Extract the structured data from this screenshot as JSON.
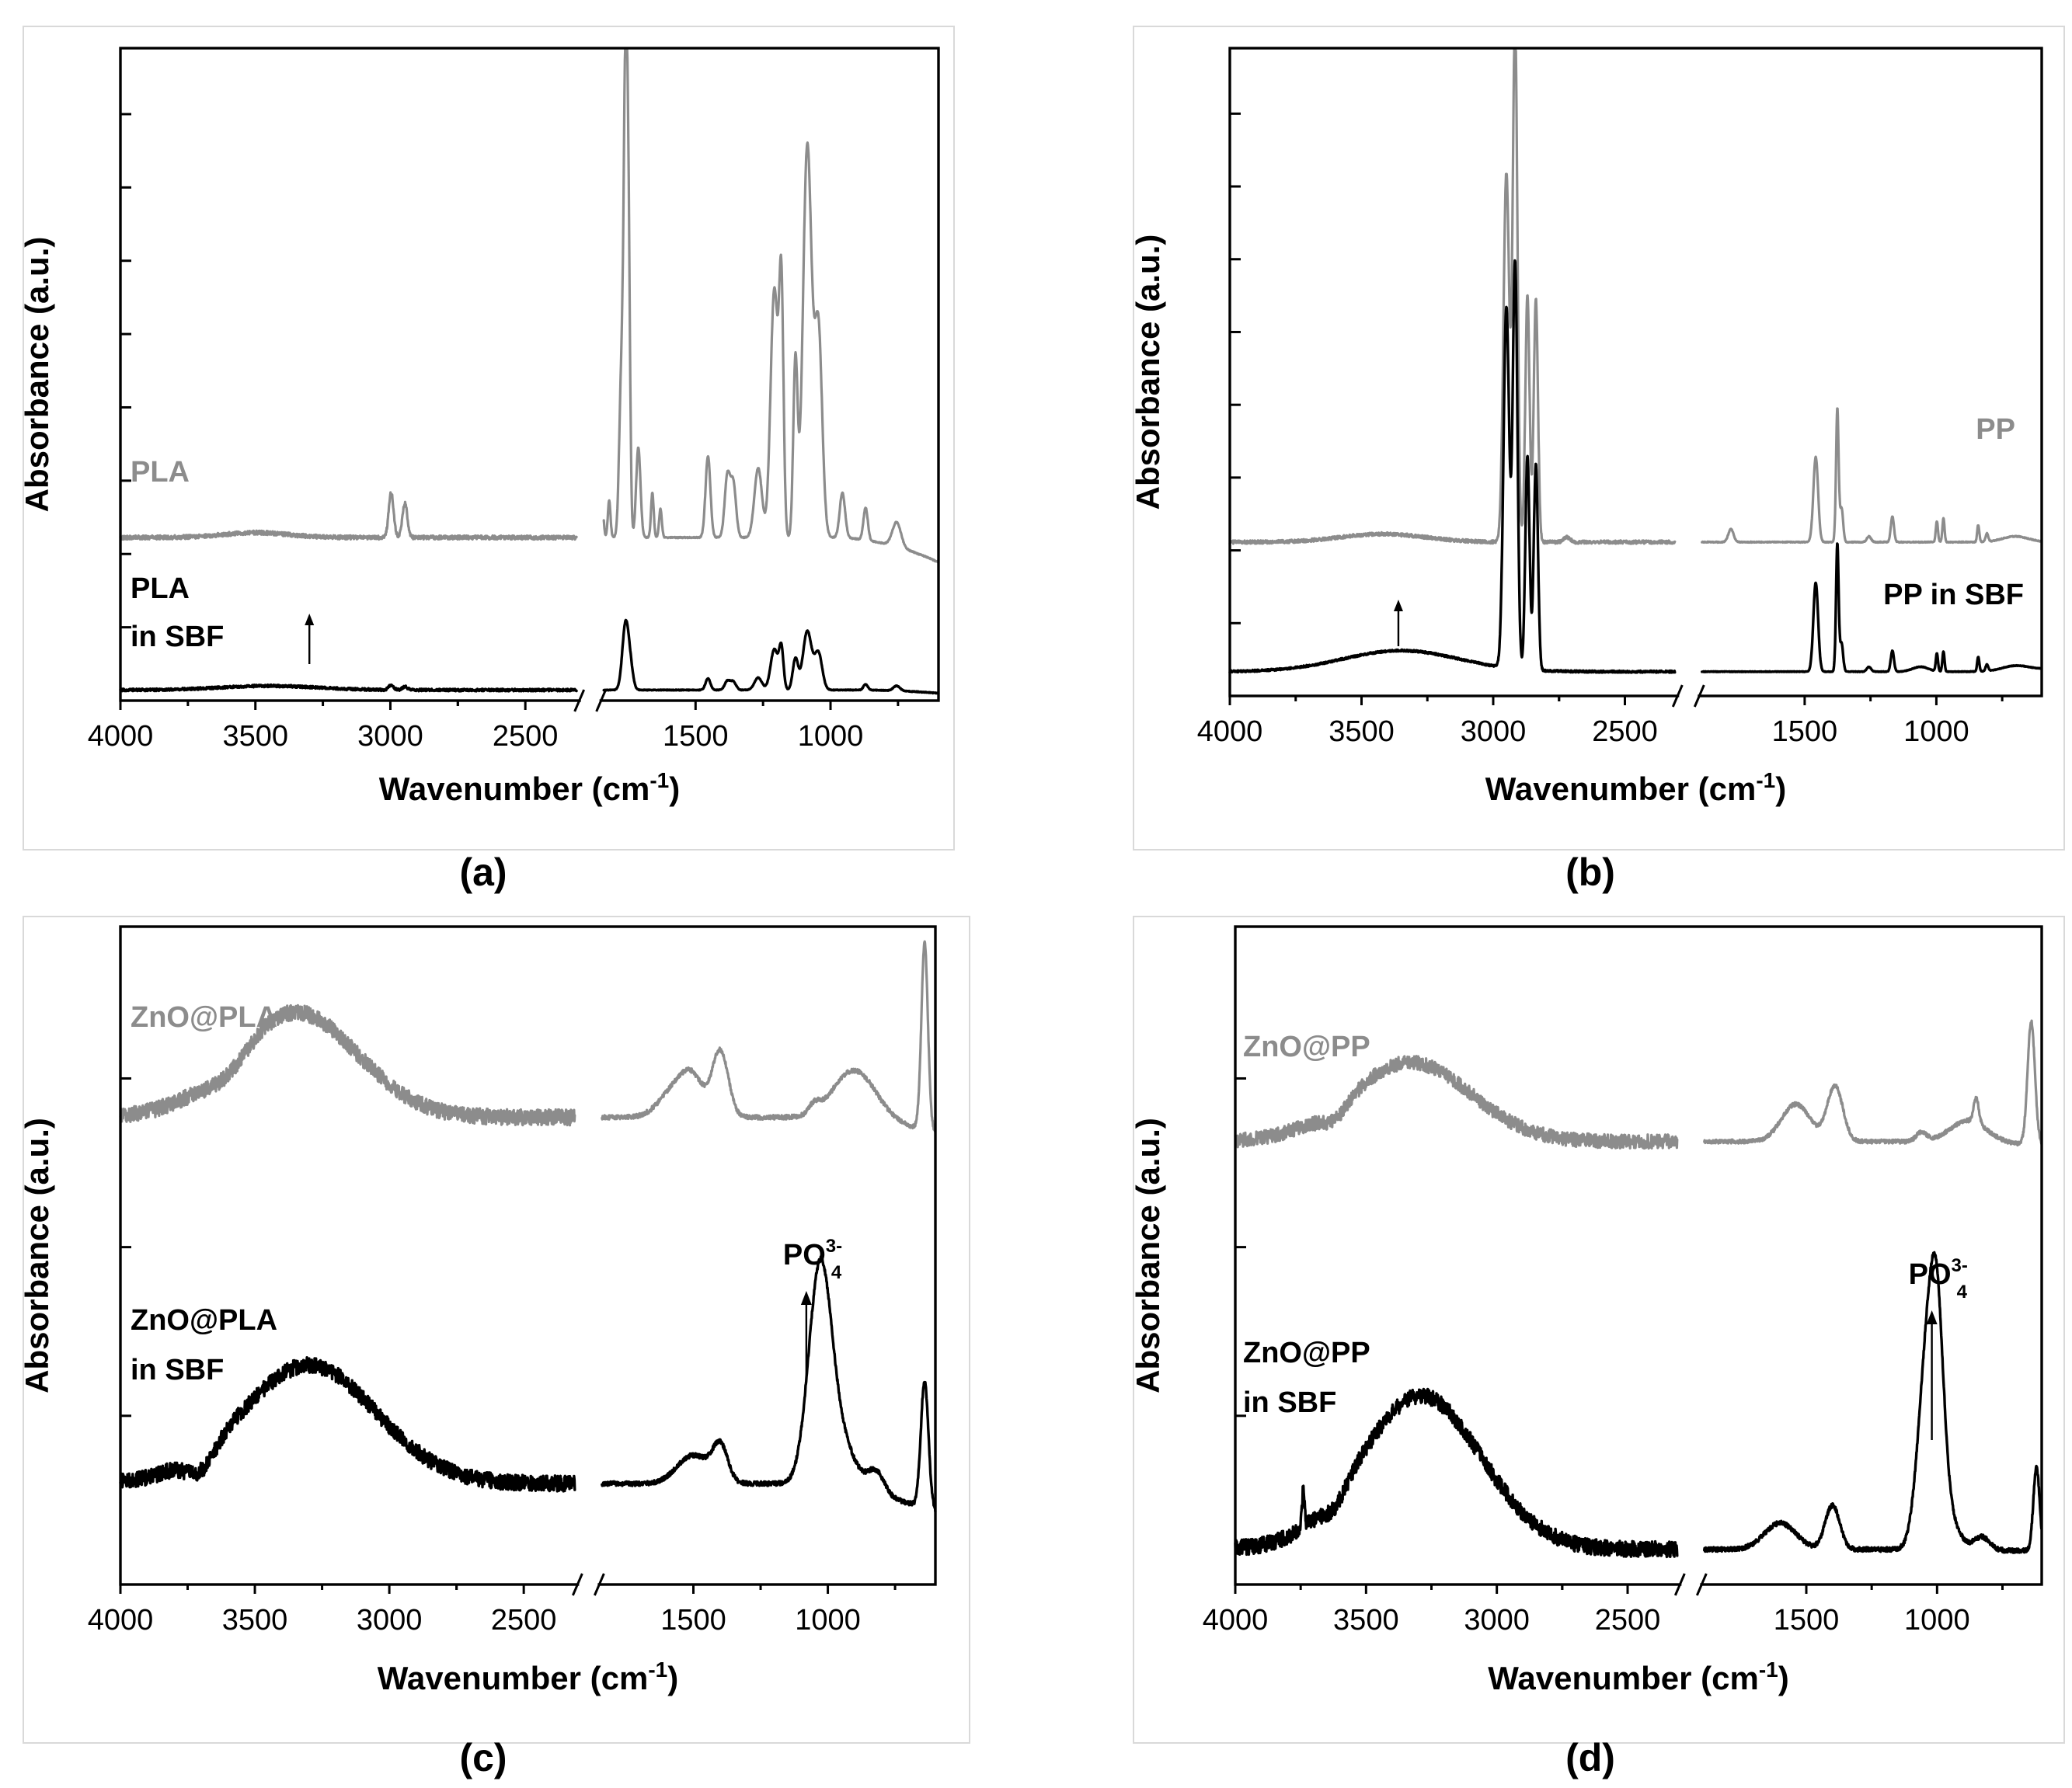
{
  "figure": {
    "x_label": "Wavenumber (cm",
    "x_label_superscript": "-1",
    "x_label_close": ")",
    "y_label": "Absorbance (a.u.)",
    "colors": {
      "sample": "#8c8c8c",
      "in_sbf": "#000000"
    }
  },
  "panels": [
    {
      "caption": "(a)",
      "upper_label": [
        "PLA"
      ],
      "lower_label": [
        "PLA",
        "in SBF"
      ],
      "x_tick_labels": [
        "4000",
        "3500",
        "3000",
        "2500",
        "1500",
        "1000"
      ],
      "y_tick_count": 8,
      "annotation": {
        "text": "",
        "superscript": "",
        "subscript": "",
        "arrow_at": 3300
      }
    },
    {
      "caption": "(b)",
      "upper_label": [
        "PP"
      ],
      "lower_label": [
        "PP in SBF"
      ],
      "x_tick_labels": [
        "4000",
        "3500",
        "3000",
        "2500",
        "1500",
        "1000"
      ],
      "y_tick_count": 8,
      "annotation": {
        "text": "",
        "superscript": "",
        "subscript": "",
        "arrow_at": 3360
      }
    },
    {
      "caption": "(c)",
      "upper_label": [
        "ZnO@PLA"
      ],
      "lower_label": [
        "ZnO@PLA",
        "in SBF"
      ],
      "x_tick_labels": [
        "4000",
        "3500",
        "3000",
        "2500",
        "1500",
        "1000"
      ],
      "y_tick_count": 3,
      "annotation": {
        "text": "PO",
        "superscript": "3-",
        "subscript": "4",
        "arrow_at": 1080
      }
    },
    {
      "caption": "(d)",
      "upper_label": [
        "ZnO@PP"
      ],
      "lower_label": [
        "ZnO@PP",
        "in SBF"
      ],
      "x_tick_labels": [
        "4000",
        "3500",
        "3000",
        "2500",
        "1500",
        "1000"
      ],
      "y_tick_count": 3,
      "annotation": {
        "text": "PO",
        "superscript": "3-",
        "subscript": "4",
        "arrow_at": 1020
      }
    }
  ],
  "chart_data": [
    {
      "type": "line",
      "panel": "(a)",
      "x_unit": "cm-1",
      "xlim": [
        4000,
        600
      ],
      "x_break": [
        2300,
        1850
      ],
      "ylim": [
        0,
        8
      ],
      "series": [
        {
          "name": "PLA",
          "color": "#8c8c8c",
          "baseline": 2.0,
          "slope": 0.0,
          "noise": 0.03,
          "noise_end": 2300,
          "tail_to": 600,
          "tail_value": 1.62,
          "tail_from": 1000,
          "peaks": [
            [
              3500,
              0.06,
              120
            ],
            [
              2997,
              0.55,
              9
            ],
            [
              2946,
              0.42,
              9
            ],
            [
              1845,
              0.35,
              5
            ],
            [
              1820,
              0.45,
              5
            ],
            [
              1775,
              1.9,
              8
            ],
            [
              1759,
              5.65,
              7
            ],
            [
              1748,
              2.9,
              6
            ],
            [
              1712,
              1.1,
              8
            ],
            [
              1660,
              0.55,
              5
            ],
            [
              1630,
              0.35,
              5
            ],
            [
              1454,
              1.0,
              9
            ],
            [
              1382,
              0.75,
              10
            ],
            [
              1360,
              0.65,
              10
            ],
            [
              1268,
              0.85,
              14
            ],
            [
              1208,
              3.05,
              14
            ],
            [
              1182,
              2.85,
              8
            ],
            [
              1130,
              2.15,
              8
            ],
            [
              1086,
              4.8,
              16
            ],
            [
              1045,
              2.55,
              14
            ],
            [
              956,
              0.55,
              10
            ],
            [
              870,
              0.4,
              8
            ],
            [
              755,
              0.3,
              16
            ]
          ]
        },
        {
          "name": "PLA in SBF",
          "color": "#000000",
          "baseline": 0.13,
          "slope": 0.0,
          "noise": 0.018,
          "noise_end": 2300,
          "tail_to": 600,
          "tail_value": 0.08,
          "tail_from": 900,
          "peaks": [
            [
              3450,
              0.05,
              180
            ],
            [
              2997,
              0.06,
              9
            ],
            [
              2946,
              0.04,
              9
            ],
            [
              1759,
              0.82,
              12
            ],
            [
              1740,
              0.2,
              10
            ],
            [
              1454,
              0.14,
              9
            ],
            [
              1382,
              0.11,
              10
            ],
            [
              1360,
              0.1,
              10
            ],
            [
              1268,
              0.15,
              14
            ],
            [
              1208,
              0.5,
              14
            ],
            [
              1182,
              0.48,
              8
            ],
            [
              1130,
              0.38,
              10
            ],
            [
              1086,
              0.72,
              16
            ],
            [
              1045,
              0.45,
              14
            ],
            [
              870,
              0.07,
              8
            ],
            [
              755,
              0.06,
              12
            ]
          ]
        }
      ]
    },
    {
      "type": "line",
      "panel": "(b)",
      "x_unit": "cm-1",
      "xlim": [
        4000,
        600
      ],
      "x_break": [
        2300,
        1900
      ],
      "ylim": [
        0,
        8
      ],
      "series": [
        {
          "name": "PP",
          "color": "#8c8c8c",
          "baseline": 1.9,
          "slope": 0.0,
          "noise": 0.025,
          "noise_end": 2300,
          "tail_to": 600,
          "tail_value": 1.9,
          "tail_from": 1000,
          "peaks": [
            [
              3420,
              0.1,
              160
            ],
            [
              2950,
              4.55,
              11
            ],
            [
              2917,
              6.4,
              9
            ],
            [
              2870,
              3.05,
              8
            ],
            [
              2838,
              3.0,
              8
            ],
            [
              2720,
              0.06,
              12
            ],
            [
              1780,
              0.16,
              10
            ],
            [
              1458,
              1.05,
              9
            ],
            [
              1376,
              1.65,
              5
            ],
            [
              1360,
              0.42,
              6
            ],
            [
              1256,
              0.07,
              8
            ],
            [
              1167,
              0.32,
              6
            ],
            [
              998,
              0.26,
              4
            ],
            [
              973,
              0.3,
              4
            ],
            [
              841,
              0.21,
              4
            ],
            [
              808,
              0.1,
              5
            ],
            [
              700,
              0.07,
              50
            ]
          ]
        },
        {
          "name": "PP in SBF",
          "color": "#000000",
          "baseline": 0.3,
          "slope": 0.0,
          "noise": 0.015,
          "noise_end": 2300,
          "tail_to": 600,
          "tail_value": 0.34,
          "tail_from": 900,
          "peaks": [
            [
              3350,
              0.26,
              220
            ],
            [
              2950,
              4.45,
              11
            ],
            [
              2917,
              5.0,
              9
            ],
            [
              2870,
              2.65,
              8
            ],
            [
              2838,
              2.55,
              8
            ],
            [
              1458,
              1.1,
              9
            ],
            [
              1376,
              1.58,
              5
            ],
            [
              1360,
              0.35,
              6
            ],
            [
              1256,
              0.06,
              8
            ],
            [
              1167,
              0.26,
              6
            ],
            [
              1060,
              0.06,
              30
            ],
            [
              998,
              0.22,
              4
            ],
            [
              973,
              0.25,
              4
            ],
            [
              841,
              0.18,
              4
            ],
            [
              808,
              0.08,
              5
            ],
            [
              700,
              0.06,
              50
            ]
          ]
        }
      ]
    },
    {
      "type": "line",
      "panel": "(c)",
      "x_unit": "cm-1",
      "xlim": [
        4000,
        600
      ],
      "x_break": [
        2300,
        1850
      ],
      "ylim": [
        0,
        3
      ],
      "series": [
        {
          "name": "ZnO@PLA",
          "color": "#8c8c8c",
          "baseline": 2.13,
          "slope": 0.0,
          "noise": 0.045,
          "noise_end": 2300,
          "tail_to": 600,
          "tail_value": 2.05,
          "tail_from": 1200,
          "peaks": [
            [
              3350,
              0.48,
              230
            ],
            [
              3600,
              -0.07,
              80
            ],
            [
              1560,
              0.14,
              60
            ],
            [
              1400,
              0.3,
              30
            ],
            [
              1500,
              0.12,
              40
            ],
            [
              900,
              0.23,
              80
            ],
            [
              1050,
              0.04,
              20
            ],
            [
              640,
              0.85,
              12
            ]
          ]
        },
        {
          "name": "ZnO@PLA in SBF",
          "color": "#000000",
          "baseline": 0.46,
          "slope": 0.0,
          "noise": 0.045,
          "noise_end": 2300,
          "tail_to": 600,
          "tail_value": 0.3,
          "tail_from": 1200,
          "peaks": [
            [
              3300,
              0.54,
              250
            ],
            [
              3700,
              -0.09,
              50
            ],
            [
              1500,
              0.13,
              60
            ],
            [
              1400,
              0.16,
              28
            ],
            [
              1030,
              0.92,
              42
            ],
            [
              960,
              0.22,
              60
            ],
            [
              820,
              0.1,
              30
            ],
            [
              640,
              0.58,
              14
            ]
          ]
        }
      ]
    },
    {
      "type": "line",
      "panel": "(d)",
      "x_unit": "cm-1",
      "xlim": [
        4000,
        600
      ],
      "x_break": [
        2300,
        1900
      ],
      "ylim": [
        0,
        3
      ],
      "series": [
        {
          "name": "ZnO@PP",
          "color": "#8c8c8c",
          "baseline": 2.02,
          "slope": 0.0,
          "noise": 0.04,
          "noise_end": 2300,
          "tail_to": 600,
          "tail_value": 2.0,
          "tail_from": 1200,
          "peaks": [
            [
              3330,
              0.36,
              230
            ],
            [
              3620,
              -0.06,
              50
            ],
            [
              1540,
              0.17,
              55
            ],
            [
              1390,
              0.25,
              30
            ],
            [
              1060,
              0.04,
              20
            ],
            [
              880,
              0.1,
              70
            ],
            [
              850,
              0.11,
              10
            ],
            [
              640,
              0.56,
              14
            ]
          ]
        },
        {
          "name": "ZnO@PP in SBF",
          "color": "#000000",
          "baseline": 0.16,
          "slope": 0.0,
          "noise": 0.045,
          "noise_end": 2300,
          "tail_to": 600,
          "tail_value": 0.15,
          "tail_from": 1200,
          "peaks": [
            [
              3290,
              0.7,
              230
            ],
            [
              3620,
              -0.06,
              40
            ],
            [
              3740,
              0.17,
              5
            ],
            [
              1600,
              0.12,
              60
            ],
            [
              1400,
              0.2,
              28
            ],
            [
              1040,
              0.82,
              34
            ],
            [
              1000,
              0.78,
              26
            ],
            [
              960,
              0.15,
              40
            ],
            [
              830,
              0.06,
              30
            ],
            [
              620,
              0.38,
              12
            ]
          ]
        }
      ]
    }
  ]
}
